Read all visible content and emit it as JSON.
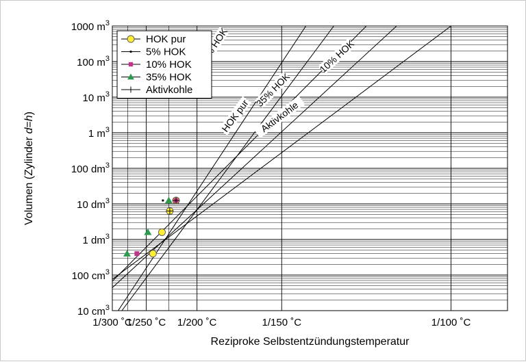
{
  "chart_data": {
    "type": "line",
    "title": "",
    "xlabel": "Reziproke Selbstentzündungstemperatur",
    "ylabel": "Volumen (Zylinder d=h)",
    "x_scale": "reciprocal",
    "x_unit": "°C",
    "xlim": [
      300,
      90
    ],
    "xticks": [
      300,
      250,
      200,
      150,
      100
    ],
    "xtick_labels": [
      "1/300 ˚C",
      "1/250 ˚C",
      "1/200 ˚C",
      "1/150 ˚C",
      "1/100 ˚C"
    ],
    "y_scale": "log",
    "y_unit": "m3",
    "ylim": [
      1e-05,
      1000
    ],
    "yticks": [
      1e-05,
      0.0001,
      0.001,
      0.01,
      0.1,
      1,
      10,
      100,
      1000
    ],
    "ytick_labels": [
      {
        "num": "10",
        "unit": "cm",
        "exp": "3"
      },
      {
        "num": "100",
        "unit": "cm",
        "exp": "3"
      },
      {
        "num": "1",
        "unit": "dm",
        "exp": "3"
      },
      {
        "num": "10",
        "unit": "dm",
        "exp": "3"
      },
      {
        "num": "100",
        "unit": "dm",
        "exp": "3"
      },
      {
        "num": "1",
        "unit": "m",
        "exp": "3"
      },
      {
        "num": "10",
        "unit": "m",
        "exp": "3"
      },
      {
        "num": "100",
        "unit": "m",
        "exp": "3"
      },
      {
        "num": "1000",
        "unit": "m",
        "exp": "3"
      }
    ],
    "grid": true,
    "legend_position": "top-left",
    "legend": [
      {
        "label": "HOK pur",
        "marker": "circle",
        "color": "#ffee33"
      },
      {
        "label": "5% HOK",
        "marker": "dot",
        "color": "#000000"
      },
      {
        "label": "10% HOK",
        "marker": "square",
        "color": "#c2338a"
      },
      {
        "label": "35% HOK",
        "marker": "triangle",
        "color": "#2e9a4e"
      },
      {
        "label": "Aktivkohle",
        "marker": "cross",
        "color": "#000000"
      }
    ],
    "points": [
      {
        "series": "HOK pur",
        "marker": "circle",
        "color": "#ffee33",
        "x": 242,
        "y": 0.0004
      },
      {
        "series": "HOK pur",
        "marker": "circle",
        "color": "#ffee33",
        "x": 232,
        "y": 0.0016
      },
      {
        "series": "HOK pur",
        "marker": "circle",
        "color": "#ffee33",
        "x": 224,
        "y": 0.0063
      },
      {
        "series": "HOK pur",
        "marker": "circle",
        "color": "#ffee33",
        "x": 218,
        "y": 0.0125
      },
      {
        "series": "5% HOK",
        "marker": "dot",
        "color": "#000000",
        "x": 231,
        "y": 0.0125
      },
      {
        "series": "10% HOK",
        "marker": "square",
        "color": "#c2338a",
        "x": 262,
        "y": 0.0004
      },
      {
        "series": "10% HOK",
        "marker": "square",
        "color": "#c2338a",
        "x": 218,
        "y": 0.0125
      },
      {
        "series": "35% HOK",
        "marker": "triangle",
        "color": "#2e9a4e",
        "x": 276,
        "y": 0.0004
      },
      {
        "series": "35% HOK",
        "marker": "triangle",
        "color": "#2e9a4e",
        "x": 248,
        "y": 0.0016
      },
      {
        "series": "35% HOK",
        "marker": "triangle",
        "color": "#2e9a4e",
        "x": 225,
        "y": 0.0125
      },
      {
        "series": "Aktivkohle",
        "marker": "cross",
        "color": "#000000",
        "x": 224,
        "y": 0.0063
      },
      {
        "series": "Aktivkohle",
        "marker": "cross",
        "color": "#000000",
        "x": 218,
        "y": 0.0125
      }
    ],
    "lines": [
      {
        "label": "5% HOK",
        "x": [
          290,
          140
        ],
        "y": [
          1e-05,
          1000
        ],
        "label_at": [
          187,
          300
        ]
      },
      {
        "label": "HOK pur",
        "x": [
          284,
          130
        ],
        "y": [
          1e-05,
          1000
        ],
        "label_at": [
          174,
          3.0
        ]
      },
      {
        "label": "35% HOK",
        "x": [
          303,
          120
        ],
        "y": [
          6e-05,
          1000
        ],
        "label_at": [
          154,
          16
        ]
      },
      {
        "label": "10% HOK",
        "x": [
          303,
          112
        ],
        "y": [
          4e-05,
          1000
        ],
        "label_at": [
          129,
          140
        ]
      },
      {
        "label": "Aktivkohle",
        "x": [
          303,
          100
        ],
        "y": [
          7e-05,
          1000
        ],
        "label_at": [
          151,
          2.8
        ]
      }
    ]
  }
}
